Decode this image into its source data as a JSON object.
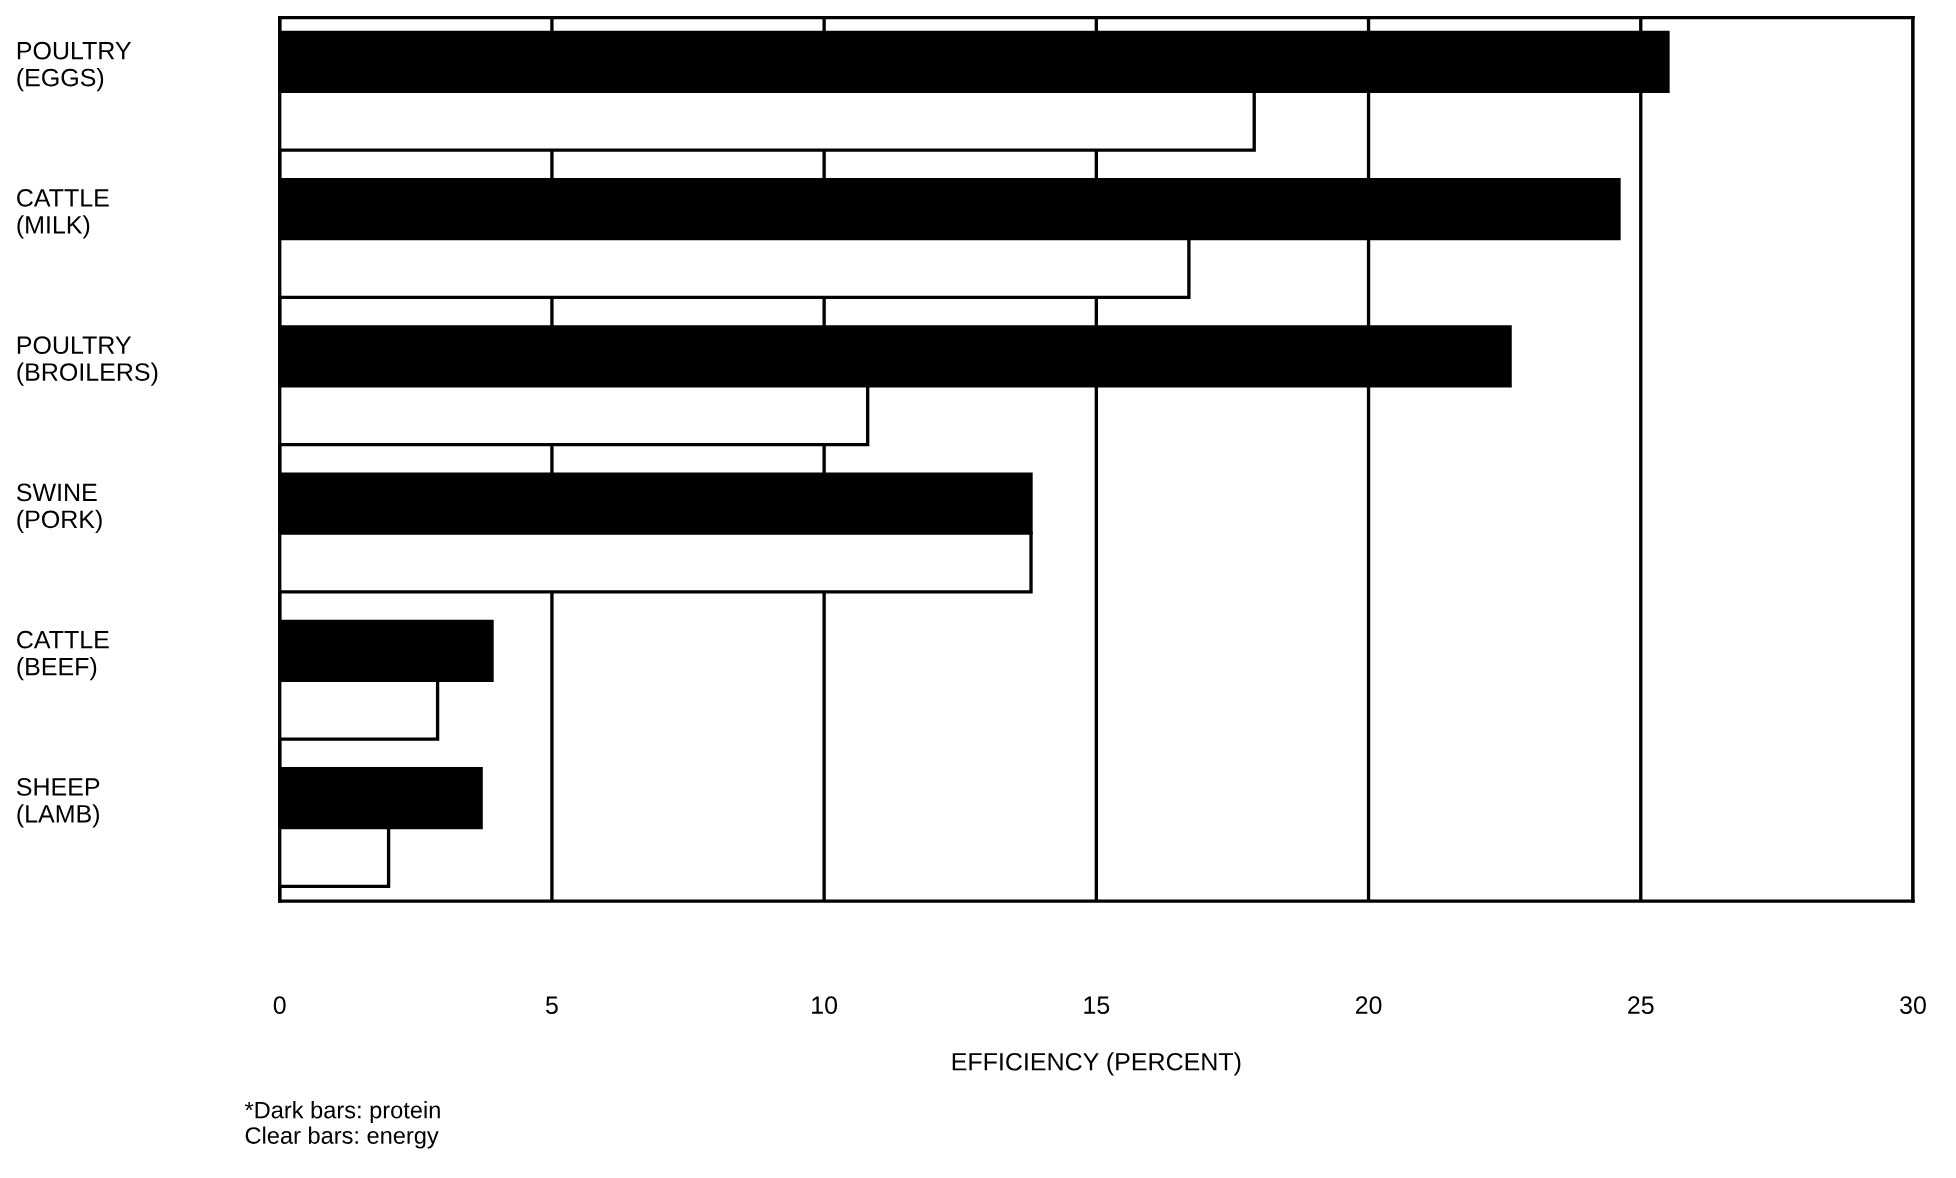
{
  "chart_data": {
    "type": "bar",
    "orientation": "horizontal",
    "categories": [
      "POULTRY\n(EGGS)",
      "CATTLE\n(MILK)",
      "POULTRY\n(BROILERS)",
      "SWINE\n(PORK)",
      "CATTLE\n(BEEF)",
      "SHEEP\n(LAMB)"
    ],
    "series": [
      {
        "color": "#000000",
        "values": [
          25.5,
          24.6,
          22.6,
          13.8,
          3.9,
          3.7
        ]
      },
      {
        "color": "#ffffff",
        "values": [
          17.9,
          16.7,
          10.8,
          13.8,
          2.9,
          2.0
        ]
      }
    ],
    "xlim": [
      0,
      30
    ],
    "xticks": [
      0,
      5,
      10,
      15,
      20,
      25,
      30
    ],
    "xlabel": "EFFICIENCY (PERCENT)",
    "grid": "x",
    "annotations": [
      "*Dark bars: protein\nClear bars: energy"
    ]
  }
}
